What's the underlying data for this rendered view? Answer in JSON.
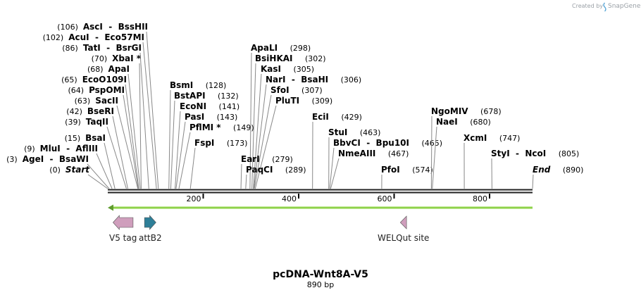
{
  "credit": {
    "prefix": "Created by",
    "brand": "SnapGene"
  },
  "title": "pcDNA-Wnt8A-V5",
  "subtitle": "890 bp",
  "sequence_length": 890,
  "ticks": [
    200,
    400,
    600,
    800
  ],
  "sites": [
    {
      "names": [
        "AscI",
        "BssHII"
      ],
      "pos": 106,
      "label_side": "left"
    },
    {
      "names": [
        "AcuI",
        "Eco57MI"
      ],
      "pos": 102,
      "label_side": "left"
    },
    {
      "names": [
        "TatI",
        "BsrGI"
      ],
      "pos": 86,
      "label_side": "left"
    },
    {
      "names": [
        "XbaI *"
      ],
      "pos": 70,
      "label_side": "left"
    },
    {
      "names": [
        "ApaI"
      ],
      "pos": 68,
      "label_side": "left"
    },
    {
      "names": [
        "EcoO109I"
      ],
      "pos": 65,
      "label_side": "left"
    },
    {
      "names": [
        "PspOMI"
      ],
      "pos": 64,
      "label_side": "left"
    },
    {
      "names": [
        "SacII"
      ],
      "pos": 63,
      "label_side": "left"
    },
    {
      "names": [
        "BseRI"
      ],
      "pos": 42,
      "label_side": "left"
    },
    {
      "names": [
        "TaqII"
      ],
      "pos": 39,
      "label_side": "left"
    },
    {
      "names": [
        "BsaI"
      ],
      "pos": 15,
      "label_side": "left"
    },
    {
      "names": [
        "MluI",
        "AflIII"
      ],
      "pos": 9,
      "label_side": "left"
    },
    {
      "names": [
        "AgeI",
        "BsaWI"
      ],
      "pos": 3,
      "label_side": "left"
    },
    {
      "names": [
        "Start"
      ],
      "pos": 0,
      "label_side": "left",
      "italic": true
    },
    {
      "names": [
        "BsmI"
      ],
      "pos": 128,
      "label_side": "right"
    },
    {
      "names": [
        "BstAPI"
      ],
      "pos": 132,
      "label_side": "right"
    },
    {
      "names": [
        "EcoNI"
      ],
      "pos": 141,
      "label_side": "right"
    },
    {
      "names": [
        "PasI"
      ],
      "pos": 143,
      "label_side": "right"
    },
    {
      "names": [
        "PflMI *"
      ],
      "pos": 149,
      "label_side": "right"
    },
    {
      "names": [
        "FspI"
      ],
      "pos": 173,
      "label_side": "right"
    },
    {
      "names": [
        "ApaLI"
      ],
      "pos": 298,
      "label_side": "right"
    },
    {
      "names": [
        "BsiHKAI"
      ],
      "pos": 302,
      "label_side": "right"
    },
    {
      "names": [
        "KasI"
      ],
      "pos": 305,
      "label_side": "right"
    },
    {
      "names": [
        "NarI",
        "BsaHI"
      ],
      "pos": 306,
      "label_side": "right"
    },
    {
      "names": [
        "SfoI"
      ],
      "pos": 307,
      "label_side": "right"
    },
    {
      "names": [
        "PluTI"
      ],
      "pos": 309,
      "label_side": "right"
    },
    {
      "names": [
        "EarI"
      ],
      "pos": 279,
      "label_side": "right"
    },
    {
      "names": [
        "PaqCI"
      ],
      "pos": 289,
      "label_side": "right"
    },
    {
      "names": [
        "EciI"
      ],
      "pos": 429,
      "label_side": "right"
    },
    {
      "names": [
        "StuI"
      ],
      "pos": 463,
      "label_side": "right"
    },
    {
      "names": [
        "BbvCI",
        "Bpu10I"
      ],
      "pos": 465,
      "label_side": "right"
    },
    {
      "names": [
        "NmeAIII"
      ],
      "pos": 467,
      "label_side": "right"
    },
    {
      "names": [
        "PfoI"
      ],
      "pos": 574,
      "label_side": "right"
    },
    {
      "names": [
        "NgoMIV"
      ],
      "pos": 678,
      "label_side": "right"
    },
    {
      "names": [
        "NaeI"
      ],
      "pos": 680,
      "label_side": "right"
    },
    {
      "names": [
        "XcmI"
      ],
      "pos": 747,
      "label_side": "right"
    },
    {
      "names": [
        "StyI",
        "NcoI"
      ],
      "pos": 805,
      "label_side": "right"
    },
    {
      "names": [
        "End"
      ],
      "pos": 890,
      "label_side": "right",
      "italic": true
    }
  ],
  "orf": {
    "start": 1,
    "end": 890,
    "direction": "reverse",
    "color": "#8ed14b"
  },
  "features": [
    {
      "name": "V5 tag",
      "start": 12,
      "end": 53,
      "direction": "reverse",
      "color": "#cf9ebc"
    },
    {
      "name": "attB2",
      "start": 78,
      "end": 101,
      "direction": "forward",
      "color": "#2e7f98"
    },
    {
      "name": "WELQut site",
      "start": 614,
      "end": 626,
      "direction": "reverse",
      "color": "#cf9ebc"
    }
  ]
}
